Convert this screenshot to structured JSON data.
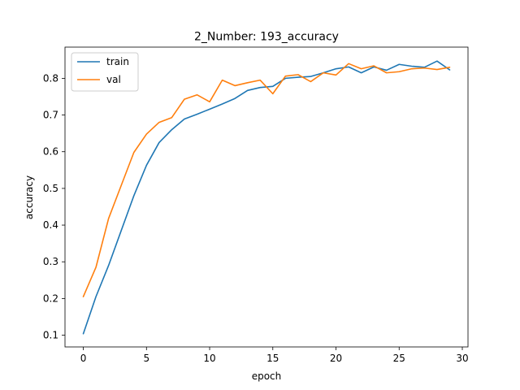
{
  "chart_data": {
    "type": "line",
    "title": "2_Number: 193_accuracy",
    "xlabel": "epoch",
    "ylabel": "accuracy",
    "xlim": [
      -1.45,
      30.45
    ],
    "ylim": [
      0.068,
      0.885
    ],
    "xticks": [
      0,
      5,
      10,
      15,
      20,
      25,
      30
    ],
    "yticks": [
      0.1,
      0.2,
      0.3,
      0.4,
      0.5,
      0.6,
      0.7,
      0.8
    ],
    "grid": false,
    "legend_position": "upper left",
    "x": [
      0,
      1,
      2,
      3,
      4,
      5,
      6,
      7,
      8,
      9,
      10,
      11,
      12,
      13,
      14,
      15,
      16,
      17,
      18,
      19,
      20,
      21,
      22,
      23,
      24,
      25,
      26,
      27,
      28,
      29
    ],
    "series": [
      {
        "name": "train",
        "color": "#1f77b4",
        "values": [
          0.104,
          0.205,
          0.29,
          0.385,
          0.48,
          0.563,
          0.625,
          0.66,
          0.689,
          0.702,
          0.716,
          0.73,
          0.745,
          0.767,
          0.775,
          0.778,
          0.8,
          0.803,
          0.805,
          0.815,
          0.826,
          0.831,
          0.815,
          0.831,
          0.822,
          0.838,
          0.833,
          0.83,
          0.847,
          0.823
        ]
      },
      {
        "name": "val",
        "color": "#ff7f0e",
        "values": [
          0.205,
          0.285,
          0.418,
          0.508,
          0.598,
          0.648,
          0.68,
          0.693,
          0.743,
          0.755,
          0.736,
          0.795,
          0.78,
          0.788,
          0.795,
          0.758,
          0.806,
          0.81,
          0.791,
          0.815,
          0.809,
          0.84,
          0.826,
          0.834,
          0.815,
          0.818,
          0.826,
          0.828,
          0.824,
          0.83
        ]
      }
    ]
  }
}
